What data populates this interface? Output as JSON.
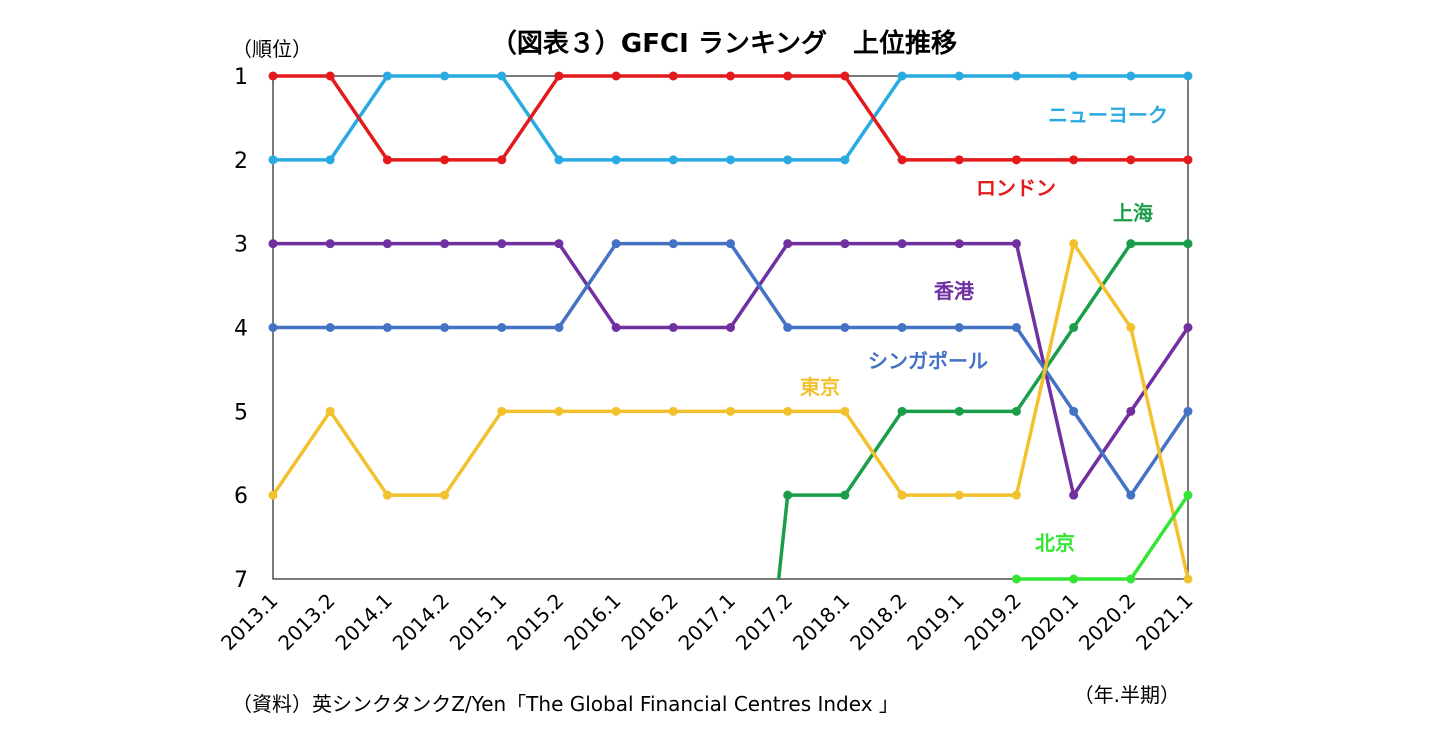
{
  "chart_data": {
    "type": "line",
    "title": "（図表３）GFCI ランキング　上位推移",
    "ylabel": "（順位）",
    "xlabel": "（年.半期）",
    "source": "（資料）英シンクタンクZ/Yen「The Global Financial Centres Index 」",
    "y_reversed": true,
    "ylim": [
      1,
      7
    ],
    "yticks": [
      "1",
      "2",
      "3",
      "4",
      "5",
      "6",
      "7"
    ],
    "categories": [
      "2013.1",
      "2013.2",
      "2014.1",
      "2014.2",
      "2015.1",
      "2015.2",
      "2016.1",
      "2016.2",
      "2017.1",
      "2017.2",
      "2018.1",
      "2018.2",
      "2019.1",
      "2019.2",
      "2020.1",
      "2020.2",
      "2021.1"
    ],
    "grid": false,
    "series": [
      {
        "name": "ニューヨーク",
        "color": "#29abe2",
        "values": [
          2,
          2,
          1,
          1,
          1,
          2,
          2,
          2,
          2,
          2,
          2,
          1,
          1,
          1,
          1,
          1,
          1
        ]
      },
      {
        "name": "ロンドン",
        "color": "#e31a1c",
        "values": [
          1,
          1,
          2,
          2,
          2,
          1,
          1,
          1,
          1,
          1,
          1,
          2,
          2,
          2,
          2,
          2,
          2
        ]
      },
      {
        "name": "上海",
        "color": "#1a9e4a",
        "values": [
          null,
          null,
          null,
          null,
          null,
          null,
          null,
          null,
          null,
          6,
          6,
          5,
          5,
          5,
          4,
          3,
          3
        ]
      },
      {
        "name": "香港",
        "color": "#7030a0",
        "values": [
          3,
          3,
          3,
          3,
          3,
          3,
          4,
          4,
          4,
          3,
          3,
          3,
          3,
          3,
          6,
          5,
          4
        ]
      },
      {
        "name": "シンガポール",
        "color": "#4472c4",
        "values": [
          4,
          4,
          4,
          4,
          4,
          4,
          3,
          3,
          3,
          4,
          4,
          4,
          4,
          4,
          5,
          6,
          5
        ]
      },
      {
        "name": "東京",
        "color": "#f2c12e",
        "values": [
          6,
          5,
          6,
          6,
          5,
          5,
          5,
          5,
          5,
          5,
          5,
          6,
          6,
          6,
          3,
          4,
          7
        ]
      },
      {
        "name": "北京",
        "color": "#33e633",
        "values": [
          null,
          null,
          null,
          null,
          null,
          null,
          null,
          null,
          null,
          null,
          null,
          null,
          null,
          7,
          7,
          7,
          6
        ]
      }
    ]
  }
}
